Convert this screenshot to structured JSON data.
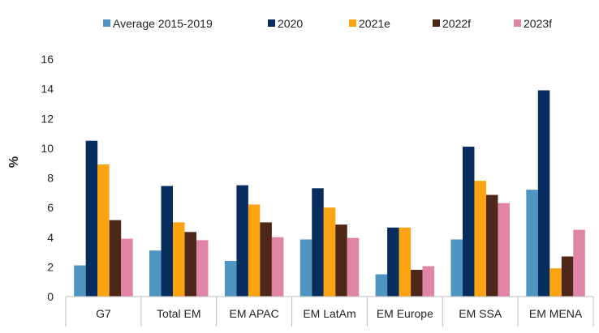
{
  "chart_data": {
    "type": "bar",
    "title": "",
    "xlabel": "",
    "ylabel": "%",
    "ylim": [
      0,
      16
    ],
    "yticks": [
      0,
      2,
      4,
      6,
      8,
      10,
      12,
      14,
      16
    ],
    "grid": false,
    "legend_position": "top",
    "categories": [
      "G7",
      "Total EM",
      "EM APAC",
      "EM LatAm",
      "EM Europe",
      "EM SSA",
      "EM MENA"
    ],
    "series": [
      {
        "name": "Average 2015-2019",
        "color": "#4f95c2",
        "values": [
          2.1,
          3.1,
          2.4,
          3.85,
          1.5,
          3.85,
          7.2
        ]
      },
      {
        "name": "2020",
        "color": "#062d5e",
        "values": [
          10.5,
          7.45,
          7.5,
          7.3,
          4.65,
          10.1,
          13.9
        ]
      },
      {
        "name": "2021e",
        "color": "#fca311",
        "values": [
          8.9,
          5.0,
          6.2,
          6.0,
          4.65,
          7.8,
          1.9
        ]
      },
      {
        "name": "2022f",
        "color": "#4d2718",
        "values": [
          5.15,
          4.35,
          5.0,
          4.85,
          1.8,
          6.85,
          2.7
        ]
      },
      {
        "name": "2023f",
        "color": "#e085a5",
        "values": [
          3.9,
          3.8,
          4.0,
          3.95,
          2.05,
          6.3,
          4.5
        ]
      }
    ]
  }
}
